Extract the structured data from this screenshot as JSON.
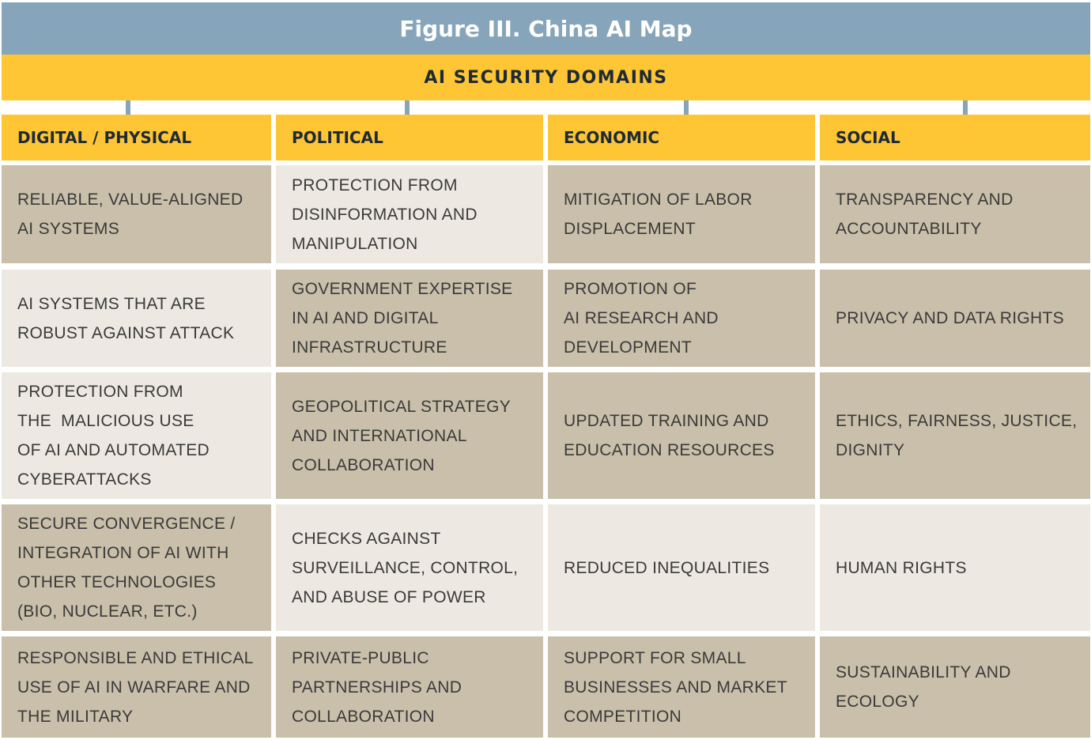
{
  "title": "Figure III. China AI Map",
  "subtitle": "AI SECURITY DOMAINS",
  "columns": [
    "DIGITAL / PHYSICAL",
    "POLITICAL",
    "ECONOMIC",
    "SOCIAL"
  ],
  "rows": [
    {
      "cells": [
        {
          "text": "RELIABLE, VALUE-ALIGNED\nAI SYSTEMS",
          "shade": "tan"
        },
        {
          "text": "PROTECTION FROM\nDISINFORMATION AND\nMANIPULATION",
          "shade": "light"
        },
        {
          "text": "MITIGATION OF LABOR\nDISPLACEMENT",
          "shade": "tan"
        },
        {
          "text": "TRANSPARENCY AND\nACCOUNTABILITY",
          "shade": "tan"
        }
      ]
    },
    {
      "cells": [
        {
          "text": "AI SYSTEMS THAT ARE\nROBUST AGAINST ATTACK",
          "shade": "light"
        },
        {
          "text": "GOVERNMENT EXPERTISE\nIN AI AND DIGITAL\nINFRASTRUCTURE",
          "shade": "tan"
        },
        {
          "text": "PROMOTION OF\nAI RESEARCH AND\nDEVELOPMENT",
          "shade": "tan"
        },
        {
          "text": "PRIVACY AND DATA RIGHTS",
          "shade": "tan"
        }
      ]
    },
    {
      "cells": [
        {
          "text": "PROTECTION FROM\nTHE  MALICIOUS USE\nOF AI AND AUTOMATED\nCYBERATTACKS",
          "shade": "light"
        },
        {
          "text": "GEOPOLITICAL STRATEGY\nAND INTERNATIONAL\nCOLLABORATION",
          "shade": "tan"
        },
        {
          "text": "UPDATED TRAINING AND\nEDUCATION RESOURCES",
          "shade": "tan"
        },
        {
          "text": "ETHICS, FAIRNESS, JUSTICE,\nDIGNITY",
          "shade": "tan"
        }
      ]
    },
    {
      "cells": [
        {
          "text": "SECURE CONVERGENCE /\nINTEGRATION OF AI WITH\nOTHER TECHNOLOGIES\n(BIO, NUCLEAR, ETC.)",
          "shade": "tan"
        },
        {
          "text": "CHECKS AGAINST\nSURVEILLANCE, CONTROL,\nAND ABUSE OF POWER",
          "shade": "light"
        },
        {
          "text": "REDUCED INEQUALITIES",
          "shade": "light"
        },
        {
          "text": "HUMAN RIGHTS",
          "shade": "light"
        }
      ]
    },
    {
      "cells": [
        {
          "text": "RESPONSIBLE AND ETHICAL\nUSE OF AI IN WARFARE AND\nTHE MILITARY",
          "shade": "tan"
        },
        {
          "text": "PRIVATE-PUBLIC\nPARTNERSHIPS AND\nCOLLABORATION",
          "shade": "tan"
        },
        {
          "text": "SUPPORT FOR SMALL\nBUSINESSES AND MARKET\nCOMPETITION",
          "shade": "tan"
        },
        {
          "text": "SUSTAINABILITY AND\nECOLOGY",
          "shade": "tan"
        }
      ]
    }
  ]
}
